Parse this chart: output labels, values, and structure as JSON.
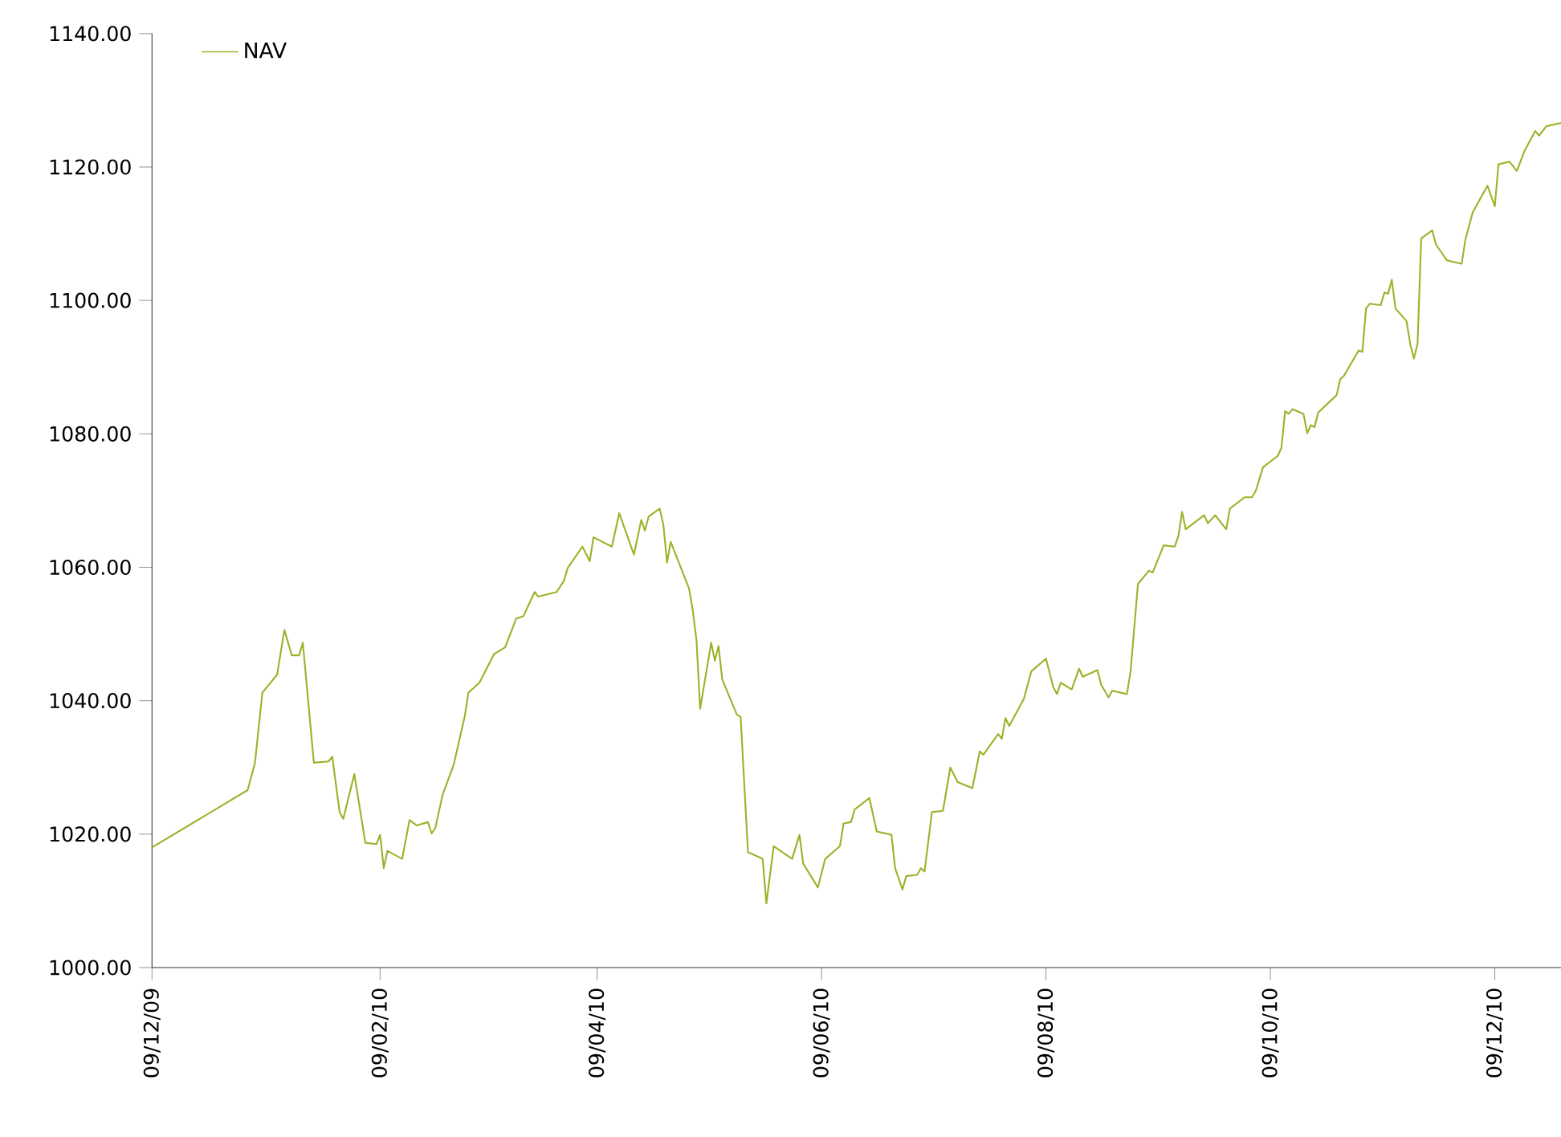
{
  "chart_data": {
    "type": "line",
    "legend": "top left",
    "marker": "none",
    "line_style": "solid",
    "xlim": [
      "2009-12-09",
      "2010-12-27"
    ],
    "ylim": [
      1000,
      1140
    ],
    "xticks": [
      {
        "value": "2009-12-09",
        "label": "09/12/09"
      },
      {
        "value": "2010-02-09",
        "label": "09/02/10"
      },
      {
        "value": "2010-04-09",
        "label": "09/04/10"
      },
      {
        "value": "2010-06-09",
        "label": "09/06/10"
      },
      {
        "value": "2010-08-09",
        "label": "09/08/10"
      },
      {
        "value": "2010-10-09",
        "label": "09/10/10"
      },
      {
        "value": "2010-12-09",
        "label": "09/12/10"
      }
    ],
    "yticks": [
      {
        "value": 1000,
        "label": "1000.00"
      },
      {
        "value": 1020,
        "label": "1020.00"
      },
      {
        "value": 1040,
        "label": "1040.00"
      },
      {
        "value": 1060,
        "label": "1060.00"
      },
      {
        "value": 1080,
        "label": "1080.00"
      },
      {
        "value": 1100,
        "label": "1100.00"
      },
      {
        "value": 1120,
        "label": "1120.00"
      },
      {
        "value": 1140,
        "label": "1140.00"
      }
    ],
    "x": [
      "2009-12-09",
      "2010-01-04",
      "2010-01-06",
      "2010-01-08",
      "2010-01-12",
      "2010-01-14",
      "2010-01-16",
      "2010-01-18",
      "2010-01-19",
      "2010-01-22",
      "2010-01-26",
      "2010-01-27",
      "2010-01-29",
      "2010-01-30",
      "2010-02-02",
      "2010-02-05",
      "2010-02-08",
      "2010-02-09",
      "2010-02-10",
      "2010-02-11",
      "2010-02-15",
      "2010-02-17",
      "2010-02-19",
      "2010-02-22",
      "2010-02-23",
      "2010-02-24",
      "2010-02-26",
      "2010-03-01",
      "2010-03-04",
      "2010-03-05",
      "2010-03-08",
      "2010-03-12",
      "2010-03-15",
      "2010-03-18",
      "2010-03-20",
      "2010-03-23",
      "2010-03-24",
      "2010-03-29",
      "2010-03-31",
      "2010-04-01",
      "2010-04-05",
      "2010-04-07",
      "2010-04-08",
      "2010-04-13",
      "2010-04-15",
      "2010-04-19",
      "2010-04-21",
      "2010-04-22",
      "2010-04-23",
      "2010-04-26",
      "2010-04-27",
      "2010-04-28",
      "2010-04-29",
      "2010-05-04",
      "2010-05-05",
      "2010-05-06",
      "2010-05-07",
      "2010-05-10",
      "2010-05-11",
      "2010-05-12",
      "2010-05-13",
      "2010-05-17",
      "2010-05-18",
      "2010-05-20",
      "2010-05-24",
      "2010-05-25",
      "2010-05-27",
      "2010-06-01",
      "2010-06-03",
      "2010-06-04",
      "2010-06-08",
      "2010-06-10",
      "2010-06-14",
      "2010-06-15",
      "2010-06-17",
      "2010-06-18",
      "2010-06-22",
      "2010-06-24",
      "2010-06-28",
      "2010-06-29",
      "2010-07-01",
      "2010-07-02",
      "2010-07-05",
      "2010-07-06",
      "2010-07-07",
      "2010-07-09",
      "2010-07-12",
      "2010-07-14",
      "2010-07-16",
      "2010-07-20",
      "2010-07-22",
      "2010-07-23",
      "2010-07-27",
      "2010-07-28",
      "2010-07-29",
      "2010-07-30",
      "2010-08-03",
      "2010-08-05",
      "2010-08-09",
      "2010-08-11",
      "2010-08-12",
      "2010-08-13",
      "2010-08-16",
      "2010-08-18",
      "2010-08-19",
      "2010-08-23",
      "2010-08-24",
      "2010-08-26",
      "2010-08-27",
      "2010-08-31",
      "2010-09-01",
      "2010-09-03",
      "2010-09-06",
      "2010-09-07",
      "2010-09-10",
      "2010-09-13",
      "2010-09-14",
      "2010-09-15",
      "2010-09-16",
      "2010-09-21",
      "2010-09-22",
      "2010-09-24",
      "2010-09-27",
      "2010-09-28",
      "2010-10-02",
      "2010-10-04",
      "2010-10-05",
      "2010-10-07",
      "2010-10-11",
      "2010-10-12",
      "2010-10-13",
      "2010-10-14",
      "2010-10-15",
      "2010-10-18",
      "2010-10-19",
      "2010-10-20",
      "2010-10-21",
      "2010-10-22",
      "2010-10-27",
      "2010-10-28",
      "2010-10-29",
      "2010-11-02",
      "2010-11-03",
      "2010-11-04",
      "2010-11-05",
      "2010-11-08",
      "2010-11-09",
      "2010-11-10",
      "2010-11-11",
      "2010-11-12",
      "2010-11-15",
      "2010-11-16",
      "2010-11-17",
      "2010-11-18",
      "2010-11-19",
      "2010-11-22",
      "2010-11-23",
      "2010-11-24",
      "2010-11-26",
      "2010-11-30",
      "2010-12-01",
      "2010-12-03",
      "2010-12-07",
      "2010-12-09",
      "2010-12-10",
      "2010-12-13",
      "2010-12-15",
      "2010-12-17",
      "2010-12-20",
      "2010-12-21",
      "2010-12-23",
      "2010-12-27"
    ],
    "series": [
      {
        "name": "NAV",
        "color": "#99b42a",
        "values": [
          1018.0,
          1026.6,
          1030.7,
          1041.2,
          1043.9,
          1050.6,
          1046.8,
          1046.8,
          1048.7,
          1030.7,
          1030.9,
          1031.6,
          1023.3,
          1022.3,
          1029.0,
          1018.7,
          1018.5,
          1019.9,
          1014.9,
          1017.5,
          1016.3,
          1022.1,
          1021.3,
          1021.8,
          1020.1,
          1020.9,
          1025.9,
          1030.4,
          1037.6,
          1041.2,
          1042.7,
          1047.0,
          1048.0,
          1052.3,
          1052.7,
          1056.3,
          1055.6,
          1056.3,
          1058.0,
          1059.9,
          1063.1,
          1060.9,
          1064.5,
          1063.1,
          1068.1,
          1061.9,
          1067.1,
          1065.5,
          1067.6,
          1068.8,
          1066.4,
          1060.7,
          1063.8,
          1056.8,
          1053.5,
          1049.1,
          1038.8,
          1048.7,
          1046.0,
          1048.2,
          1043.2,
          1037.9,
          1037.6,
          1017.3,
          1016.3,
          1009.6,
          1018.2,
          1016.3,
          1019.9,
          1015.6,
          1012.0,
          1016.3,
          1018.2,
          1021.6,
          1021.8,
          1023.7,
          1025.4,
          1020.4,
          1019.9,
          1014.9,
          1011.7,
          1013.7,
          1013.9,
          1014.9,
          1014.4,
          1023.3,
          1023.5,
          1030.0,
          1027.8,
          1026.9,
          1032.4,
          1031.9,
          1035.0,
          1034.3,
          1037.4,
          1036.2,
          1040.3,
          1044.4,
          1046.3,
          1042.0,
          1041.0,
          1042.7,
          1041.7,
          1044.8,
          1043.6,
          1044.6,
          1042.4,
          1040.5,
          1041.5,
          1041.0,
          1044.4,
          1057.5,
          1059.5,
          1059.2,
          1063.3,
          1063.1,
          1064.7,
          1068.3,
          1065.7,
          1067.8,
          1066.6,
          1067.8,
          1065.7,
          1068.8,
          1070.5,
          1070.5,
          1071.4,
          1075.0,
          1076.7,
          1077.9,
          1083.4,
          1083.0,
          1083.7,
          1083.0,
          1080.1,
          1081.3,
          1081.0,
          1083.2,
          1085.8,
          1088.2,
          1088.7,
          1092.5,
          1092.3,
          1098.8,
          1099.5,
          1099.3,
          1101.2,
          1101.0,
          1103.1,
          1098.8,
          1096.9,
          1093.5,
          1091.3,
          1093.5,
          1109.3,
          1110.5,
          1108.4,
          1107.6,
          1106.0,
          1105.5,
          1109.1,
          1113.2,
          1117.2,
          1114.1,
          1120.4,
          1120.8,
          1119.4,
          1122.3,
          1125.4,
          1124.7,
          1126.1,
          1126.6
        ]
      }
    ]
  }
}
